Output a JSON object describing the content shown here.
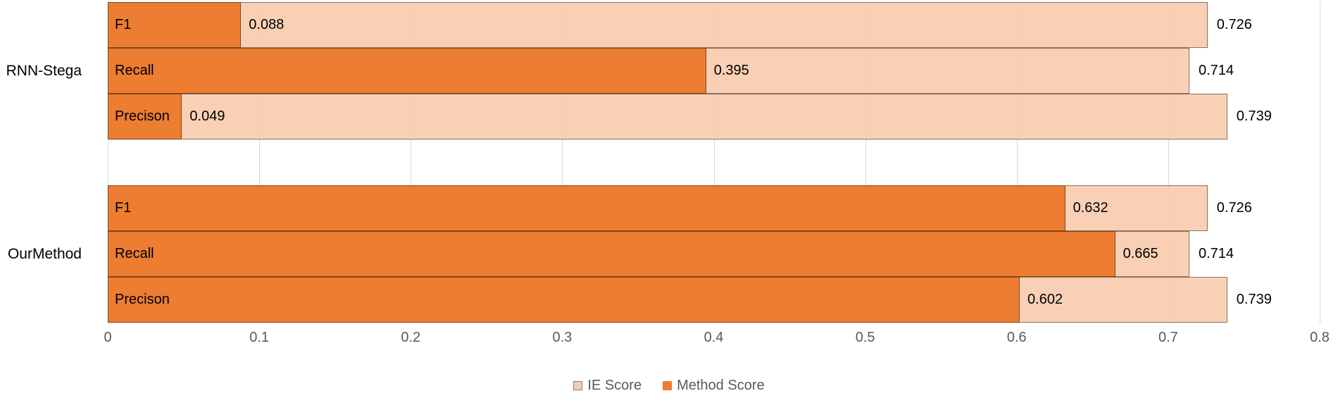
{
  "chart_data": {
    "type": "bar",
    "orientation": "horizontal",
    "title": "",
    "categories": [
      "F1",
      "Recall",
      "Precison"
    ],
    "groups": [
      {
        "name": "RNN-Stega",
        "bars": [
          {
            "metric": "F1",
            "method_score": 0.088,
            "ie_score": 0.726
          },
          {
            "metric": "Recall",
            "method_score": 0.395,
            "ie_score": 0.714
          },
          {
            "metric": "Precison",
            "method_score": 0.049,
            "ie_score": 0.739
          }
        ]
      },
      {
        "name": "OurMethod",
        "bars": [
          {
            "metric": "F1",
            "method_score": 0.632,
            "ie_score": 0.726
          },
          {
            "metric": "Recall",
            "method_score": 0.665,
            "ie_score": 0.714
          },
          {
            "metric": "Precison",
            "method_score": 0.602,
            "ie_score": 0.739
          }
        ]
      }
    ],
    "series": [
      {
        "name": "IE Score",
        "color": "#F8CBAD"
      },
      {
        "name": "Method Score",
        "color": "#ED7D31"
      }
    ],
    "xlim": [
      0,
      0.8
    ],
    "xticks": [
      "0",
      "0.1",
      "0.2",
      "0.3",
      "0.4",
      "0.5",
      "0.6",
      "0.7",
      "0.8"
    ],
    "grid": true,
    "legend_position": "bottom",
    "value_label_decimals": 3
  },
  "colors": {
    "method_score": "#ED7D31",
    "ie_score": "#F8CBAD",
    "gridline": "#D9D9D9",
    "axis_text": "#595959",
    "legend_text": "#595959",
    "label_text": "#000000",
    "swatch_border": "#7F7F7F",
    "background": "#FFFFFF"
  }
}
